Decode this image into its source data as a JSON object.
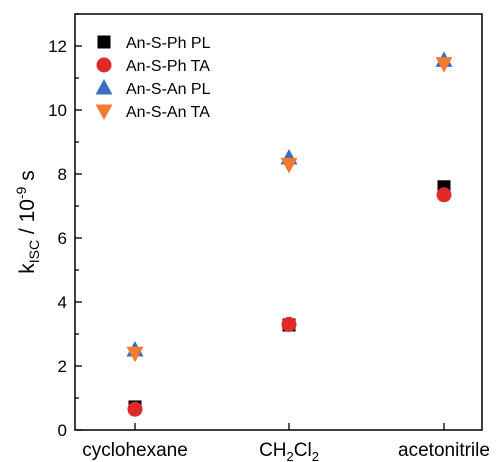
{
  "chart_data": {
    "type": "scatter",
    "categories": [
      "cyclohexane",
      "CH2Cl2",
      "acetonitrile"
    ],
    "category_labels": [
      {
        "main": "cyclohexane",
        "sub": ""
      },
      {
        "main": "CH",
        "sub": "2",
        "main2": "Cl",
        "sub2": "2"
      },
      {
        "main": "acetonitrile",
        "sub": ""
      }
    ],
    "ylabel": {
      "k": "k",
      "sub": "ISC",
      "mid": " / 10",
      "sup": "-9",
      "unit": " s"
    },
    "ylim": [
      0,
      13
    ],
    "yticks": [
      0,
      2,
      4,
      6,
      8,
      10,
      12
    ],
    "grid": false,
    "legend_position": "top-left",
    "series": [
      {
        "name": "An-S-Ph PL",
        "marker": "square",
        "color": "#000000",
        "values": [
          0.72,
          3.28,
          7.6
        ]
      },
      {
        "name": "An-S-Ph TA",
        "marker": "circle",
        "color": "#e02a2a",
        "values": [
          0.65,
          3.3,
          7.35
        ]
      },
      {
        "name": "An-S-An PL",
        "marker": "triangle-up",
        "color": "#3a6ec0",
        "values": [
          2.5,
          8.5,
          11.55
        ]
      },
      {
        "name": "An-S-An TA",
        "marker": "triangle-down",
        "color": "#f47a30",
        "values": [
          2.4,
          8.3,
          11.45
        ]
      }
    ]
  }
}
